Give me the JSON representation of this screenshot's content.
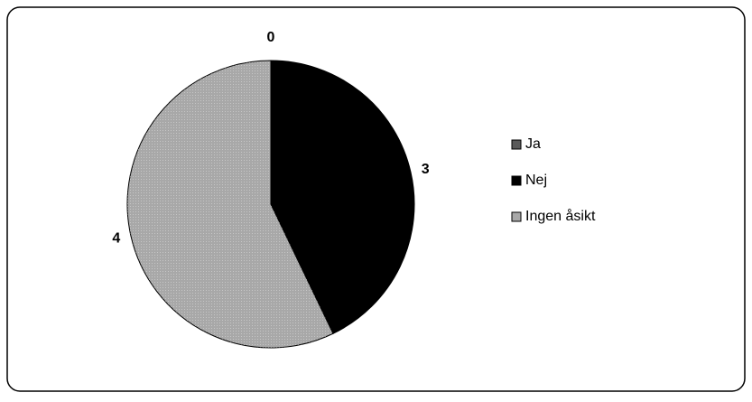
{
  "chart_data": {
    "type": "pie",
    "categories": [
      "Ja",
      "Nej",
      "Ingen åsikt"
    ],
    "values": [
      0,
      3,
      4
    ],
    "colors": [
      "#5a5a5a",
      "#000000",
      "#a8a8a8"
    ],
    "legend": "right"
  }
}
